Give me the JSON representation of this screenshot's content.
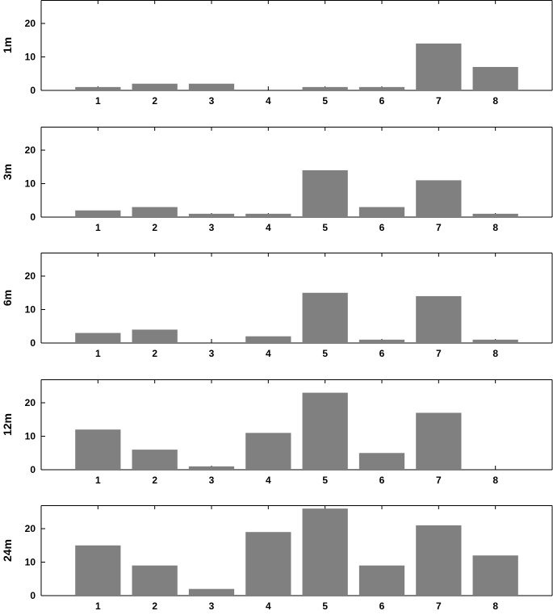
{
  "chart_data": [
    {
      "type": "bar",
      "ylabel": "1m",
      "categories": [
        "1",
        "2",
        "3",
        "4",
        "5",
        "6",
        "7",
        "8"
      ],
      "values": [
        1,
        2,
        2,
        0,
        1,
        1,
        14,
        7
      ],
      "yticks": [
        0,
        10,
        20
      ],
      "ylim": [
        0,
        27
      ],
      "bar_color": "#808080",
      "grid": false
    },
    {
      "type": "bar",
      "ylabel": "3m",
      "categories": [
        "1",
        "2",
        "3",
        "4",
        "5",
        "6",
        "7",
        "8"
      ],
      "values": [
        2,
        3,
        1,
        1,
        14,
        3,
        11,
        1
      ],
      "yticks": [
        0,
        10,
        20
      ],
      "ylim": [
        0,
        27
      ],
      "bar_color": "#808080",
      "grid": false
    },
    {
      "type": "bar",
      "ylabel": "6m",
      "categories": [
        "1",
        "2",
        "3",
        "4",
        "5",
        "6",
        "7",
        "8"
      ],
      "values": [
        3,
        4,
        0,
        2,
        15,
        1,
        14,
        1
      ],
      "yticks": [
        0,
        10,
        20
      ],
      "ylim": [
        0,
        27
      ],
      "bar_color": "#808080",
      "grid": false
    },
    {
      "type": "bar",
      "ylabel": "12m",
      "categories": [
        "1",
        "2",
        "3",
        "4",
        "5",
        "6",
        "7",
        "8"
      ],
      "values": [
        12,
        6,
        1,
        11,
        23,
        5,
        17,
        0
      ],
      "yticks": [
        0,
        10,
        20
      ],
      "ylim": [
        0,
        27
      ],
      "bar_color": "#808080",
      "grid": false
    },
    {
      "type": "bar",
      "ylabel": "24m",
      "categories": [
        "1",
        "2",
        "3",
        "4",
        "5",
        "6",
        "7",
        "8"
      ],
      "values": [
        15,
        9,
        2,
        19,
        26,
        9,
        21,
        12
      ],
      "yticks": [
        0,
        10,
        20
      ],
      "ylim": [
        0,
        27
      ],
      "bar_color": "#808080",
      "grid": false
    }
  ]
}
